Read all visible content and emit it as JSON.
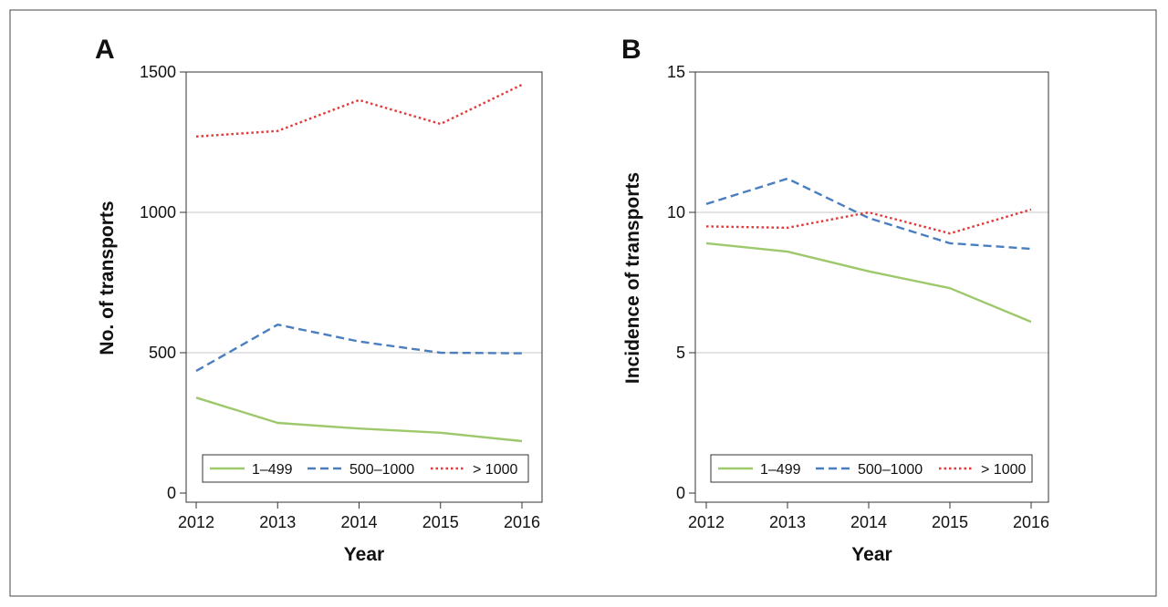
{
  "colors": {
    "series_1_499": "#9dc86b",
    "series_500_1000": "#4a7fbf",
    "series_gt_1000": "#e23a3a",
    "gridline": "#c8c8c8",
    "axis": "#333333"
  },
  "chart_data": [
    {
      "type": "line",
      "panel": "A",
      "title": "",
      "xlabel": "Year",
      "ylabel": "No. of transports",
      "x": [
        2012,
        2013,
        2014,
        2015,
        2016
      ],
      "x_tick_labels": [
        "2012",
        "2013",
        "2014",
        "2015",
        "2016"
      ],
      "y_ticks": [
        0,
        500,
        1000,
        1500
      ],
      "y_tick_labels": [
        "0",
        "500",
        "1000",
        "1500"
      ],
      "ylim": [
        0,
        1500
      ],
      "grid": "horizontal",
      "legend_position": "bottom",
      "series": [
        {
          "name": "1–499",
          "style": "solid",
          "color": "#9dc86b",
          "values": [
            340,
            250,
            230,
            215,
            185
          ]
        },
        {
          "name": "500–1000",
          "style": "dashed",
          "color": "#4a7fbf",
          "values": [
            435,
            600,
            540,
            500,
            498
          ]
        },
        {
          "name": "> 1000",
          "style": "dotted",
          "color": "#e23a3a",
          "values": [
            1270,
            1290,
            1400,
            1315,
            1455
          ]
        }
      ]
    },
    {
      "type": "line",
      "panel": "B",
      "title": "",
      "xlabel": "Year",
      "ylabel": "Incidence of transports",
      "x": [
        2012,
        2013,
        2014,
        2015,
        2016
      ],
      "x_tick_labels": [
        "2012",
        "2013",
        "2014",
        "2015",
        "2016"
      ],
      "y_ticks": [
        0,
        5,
        10,
        15
      ],
      "y_tick_labels": [
        "0",
        "5",
        "10",
        "15"
      ],
      "ylim": [
        0,
        15
      ],
      "grid": "horizontal",
      "legend_position": "bottom",
      "series": [
        {
          "name": "1–499",
          "style": "solid",
          "color": "#9dc86b",
          "values": [
            8.9,
            8.6,
            7.9,
            7.3,
            6.1
          ]
        },
        {
          "name": "500–1000",
          "style": "dashed",
          "color": "#4a7fbf",
          "values": [
            10.3,
            11.2,
            9.8,
            8.9,
            8.7
          ]
        },
        {
          "name": "> 1000",
          "style": "dotted",
          "color": "#e23a3a",
          "values": [
            9.5,
            9.45,
            10.0,
            9.25,
            10.1
          ]
        }
      ]
    }
  ]
}
